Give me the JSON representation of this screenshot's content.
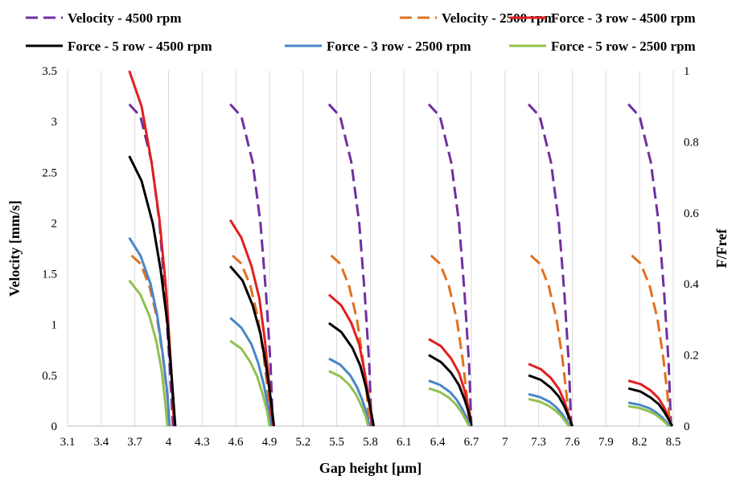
{
  "chart_data": {
    "type": "line",
    "title": "",
    "xlabel": "Gap height [µm]",
    "ylabel": "Velocity [mm/s]",
    "y2label": "F/Fref",
    "xlim": [
      3.1,
      8.5
    ],
    "ylim": [
      0,
      3.5
    ],
    "y2lim": [
      0,
      1
    ],
    "x_ticks": [
      "3.1",
      "3.4",
      "3.7",
      "4",
      "4.3",
      "4.6",
      "4.9",
      "5.2",
      "5.5",
      "5.8",
      "6.1",
      "6.4",
      "6.7",
      "7",
      "7.3",
      "7.6",
      "7.9",
      "8.2",
      "8.5"
    ],
    "y_ticks": [
      "0",
      "0.5",
      "1",
      "1.5",
      "2",
      "2.5",
      "3",
      "3.5"
    ],
    "y2_ticks": [
      "0",
      "0.2",
      "0.4",
      "0.6",
      "0.8",
      "1"
    ],
    "grid": "vertical",
    "legend_position": "top",
    "series": [
      {
        "name": "Velocity - 4500 rpm",
        "axis": "left",
        "color": "#7030A0",
        "dash": "dashed",
        "segments": [
          {
            "x": [
              3.65,
              3.75,
              3.85,
              3.92,
              3.97,
              4.01,
              4.04
            ],
            "y": [
              3.17,
              3.05,
              2.6,
              2.0,
              1.3,
              0.6,
              0.0
            ]
          },
          {
            "x": [
              4.55,
              4.65,
              4.75,
              4.82,
              4.87,
              4.91,
              4.93
            ],
            "y": [
              3.17,
              3.05,
              2.6,
              2.0,
              1.3,
              0.6,
              0.0
            ]
          },
          {
            "x": [
              5.43,
              5.53,
              5.63,
              5.7,
              5.75,
              5.79,
              5.81
            ],
            "y": [
              3.17,
              3.05,
              2.6,
              2.0,
              1.3,
              0.6,
              0.0
            ]
          },
          {
            "x": [
              6.32,
              6.42,
              6.52,
              6.59,
              6.64,
              6.68,
              6.7
            ],
            "y": [
              3.17,
              3.05,
              2.6,
              2.0,
              1.3,
              0.6,
              0.0
            ]
          },
          {
            "x": [
              7.21,
              7.31,
              7.41,
              7.48,
              7.53,
              7.57,
              7.59
            ],
            "y": [
              3.17,
              3.05,
              2.6,
              2.0,
              1.3,
              0.6,
              0.0
            ]
          },
          {
            "x": [
              8.1,
              8.2,
              8.3,
              8.37,
              8.42,
              8.46,
              8.48
            ],
            "y": [
              3.17,
              3.05,
              2.6,
              2.0,
              1.3,
              0.6,
              0.0
            ]
          }
        ]
      },
      {
        "name": "Velocity - 2500 rpm",
        "axis": "left",
        "color": "#E07020",
        "dash": "dashed",
        "segments": [
          {
            "x": [
              3.67,
              3.75,
              3.83,
              3.9,
              3.95,
              3.99,
              4.01
            ],
            "y": [
              1.68,
              1.6,
              1.38,
              1.05,
              0.68,
              0.3,
              0.0
            ]
          },
          {
            "x": [
              4.57,
              4.65,
              4.73,
              4.8,
              4.85,
              4.89,
              4.91
            ],
            "y": [
              1.68,
              1.6,
              1.38,
              1.05,
              0.68,
              0.3,
              0.0
            ]
          },
          {
            "x": [
              5.45,
              5.53,
              5.61,
              5.68,
              5.73,
              5.77,
              5.79
            ],
            "y": [
              1.68,
              1.6,
              1.38,
              1.05,
              0.68,
              0.3,
              0.0
            ]
          },
          {
            "x": [
              6.34,
              6.42,
              6.5,
              6.57,
              6.62,
              6.66,
              6.68
            ],
            "y": [
              1.68,
              1.6,
              1.38,
              1.05,
              0.68,
              0.3,
              0.0
            ]
          },
          {
            "x": [
              7.23,
              7.31,
              7.39,
              7.46,
              7.51,
              7.55,
              7.57
            ],
            "y": [
              1.68,
              1.6,
              1.38,
              1.05,
              0.68,
              0.3,
              0.0
            ]
          },
          {
            "x": [
              8.13,
              8.21,
              8.29,
              8.36,
              8.41,
              8.45,
              8.47
            ],
            "y": [
              1.68,
              1.6,
              1.38,
              1.05,
              0.68,
              0.3,
              0.0
            ]
          }
        ]
      },
      {
        "name": "Force - 3 row - 4500 rpm",
        "axis": "right",
        "color": "#E02020",
        "dash": "solid",
        "segments": [
          {
            "x": [
              3.65,
              3.76,
              3.85,
              3.92,
              3.98,
              4.02,
              4.05
            ],
            "y": [
              1.0,
              0.9,
              0.74,
              0.58,
              0.38,
              0.18,
              0.0
            ]
          },
          {
            "x": [
              4.55,
              4.65,
              4.74,
              4.81,
              4.86,
              4.9,
              4.92
            ],
            "y": [
              0.58,
              0.53,
              0.45,
              0.36,
              0.24,
              0.11,
              0.0
            ]
          },
          {
            "x": [
              5.43,
              5.54,
              5.63,
              5.7,
              5.75,
              5.79,
              5.82
            ],
            "y": [
              0.37,
              0.34,
              0.29,
              0.23,
              0.15,
              0.07,
              0.0
            ]
          },
          {
            "x": [
              6.32,
              6.43,
              6.52,
              6.59,
              6.64,
              6.68,
              6.7
            ],
            "y": [
              0.245,
              0.225,
              0.19,
              0.15,
              0.1,
              0.045,
              0.0
            ]
          },
          {
            "x": [
              7.21,
              7.32,
              7.41,
              7.48,
              7.53,
              7.57,
              7.6
            ],
            "y": [
              0.175,
              0.16,
              0.135,
              0.105,
              0.07,
              0.03,
              0.0
            ]
          },
          {
            "x": [
              8.1,
              8.21,
              8.3,
              8.37,
              8.42,
              8.46,
              8.49
            ],
            "y": [
              0.128,
              0.118,
              0.1,
              0.078,
              0.052,
              0.022,
              0.0
            ]
          }
        ]
      },
      {
        "name": "Force - 5 row - 4500 rpm",
        "axis": "right",
        "color": "#000000",
        "dash": "solid",
        "segments": [
          {
            "x": [
              3.65,
              3.76,
              3.86,
              3.93,
              3.99,
              4.03,
              4.06
            ],
            "y": [
              0.76,
              0.69,
              0.57,
              0.44,
              0.29,
              0.13,
              0.0
            ]
          },
          {
            "x": [
              4.55,
              4.66,
              4.75,
              4.82,
              4.87,
              4.91,
              4.94
            ],
            "y": [
              0.45,
              0.41,
              0.34,
              0.26,
              0.17,
              0.08,
              0.0
            ]
          },
          {
            "x": [
              5.43,
              5.54,
              5.64,
              5.71,
              5.76,
              5.8,
              5.83
            ],
            "y": [
              0.29,
              0.265,
              0.22,
              0.17,
              0.11,
              0.05,
              0.0
            ]
          },
          {
            "x": [
              6.32,
              6.43,
              6.52,
              6.59,
              6.64,
              6.68,
              6.7
            ],
            "y": [
              0.2,
              0.18,
              0.15,
              0.115,
              0.075,
              0.035,
              0.0
            ]
          },
          {
            "x": [
              7.21,
              7.32,
              7.41,
              7.48,
              7.53,
              7.57,
              7.6
            ],
            "y": [
              0.143,
              0.13,
              0.108,
              0.083,
              0.055,
              0.025,
              0.0
            ]
          },
          {
            "x": [
              8.1,
              8.21,
              8.3,
              8.37,
              8.42,
              8.46,
              8.49
            ],
            "y": [
              0.106,
              0.097,
              0.08,
              0.062,
              0.04,
              0.018,
              0.0
            ]
          }
        ]
      },
      {
        "name": "Force - 3 row - 2500 rpm",
        "axis": "right",
        "color": "#4A86C8",
        "dash": "solid",
        "segments": [
          {
            "x": [
              3.65,
              3.75,
              3.84,
              3.9,
              3.95,
              3.99,
              4.01
            ],
            "y": [
              0.53,
              0.48,
              0.4,
              0.31,
              0.2,
              0.09,
              0.0
            ]
          },
          {
            "x": [
              4.55,
              4.65,
              4.74,
              4.8,
              4.85,
              4.89,
              4.91
            ],
            "y": [
              0.305,
              0.277,
              0.23,
              0.177,
              0.116,
              0.052,
              0.0
            ]
          },
          {
            "x": [
              5.43,
              5.53,
              5.62,
              5.68,
              5.73,
              5.77,
              5.79
            ],
            "y": [
              0.19,
              0.173,
              0.143,
              0.11,
              0.072,
              0.032,
              0.0
            ]
          },
          {
            "x": [
              6.32,
              6.42,
              6.51,
              6.57,
              6.62,
              6.66,
              6.69
            ],
            "y": [
              0.128,
              0.116,
              0.096,
              0.074,
              0.048,
              0.022,
              0.0
            ]
          },
          {
            "x": [
              7.21,
              7.31,
              7.4,
              7.46,
              7.51,
              7.55,
              7.58
            ],
            "y": [
              0.09,
              0.082,
              0.068,
              0.052,
              0.034,
              0.015,
              0.0
            ]
          },
          {
            "x": [
              8.1,
              8.2,
              8.29,
              8.35,
              8.4,
              8.44,
              8.47
            ],
            "y": [
              0.066,
              0.06,
              0.05,
              0.038,
              0.025,
              0.011,
              0.0
            ]
          }
        ]
      },
      {
        "name": "Force - 5 row - 2500 rpm",
        "axis": "right",
        "color": "#92C050",
        "dash": "solid",
        "segments": [
          {
            "x": [
              3.65,
              3.75,
              3.83,
              3.89,
              3.94,
              3.97,
              3.99
            ],
            "y": [
              0.41,
              0.37,
              0.31,
              0.24,
              0.155,
              0.07,
              0.0
            ]
          },
          {
            "x": [
              4.55,
              4.65,
              4.73,
              4.79,
              4.84,
              4.88,
              4.9
            ],
            "y": [
              0.24,
              0.218,
              0.18,
              0.14,
              0.09,
              0.041,
              0.0
            ]
          },
          {
            "x": [
              5.43,
              5.53,
              5.61,
              5.67,
              5.72,
              5.76,
              5.78
            ],
            "y": [
              0.155,
              0.14,
              0.117,
              0.09,
              0.058,
              0.026,
              0.0
            ]
          },
          {
            "x": [
              6.32,
              6.42,
              6.5,
              6.56,
              6.61,
              6.65,
              6.68
            ],
            "y": [
              0.106,
              0.096,
              0.08,
              0.062,
              0.04,
              0.018,
              0.0
            ]
          },
          {
            "x": [
              7.21,
              7.31,
              7.39,
              7.45,
              7.5,
              7.54,
              7.57
            ],
            "y": [
              0.076,
              0.069,
              0.057,
              0.044,
              0.029,
              0.013,
              0.0
            ]
          },
          {
            "x": [
              8.1,
              8.2,
              8.28,
              8.34,
              8.39,
              8.43,
              8.46
            ],
            "y": [
              0.056,
              0.051,
              0.042,
              0.033,
              0.021,
              0.01,
              0.0
            ]
          }
        ]
      }
    ]
  }
}
